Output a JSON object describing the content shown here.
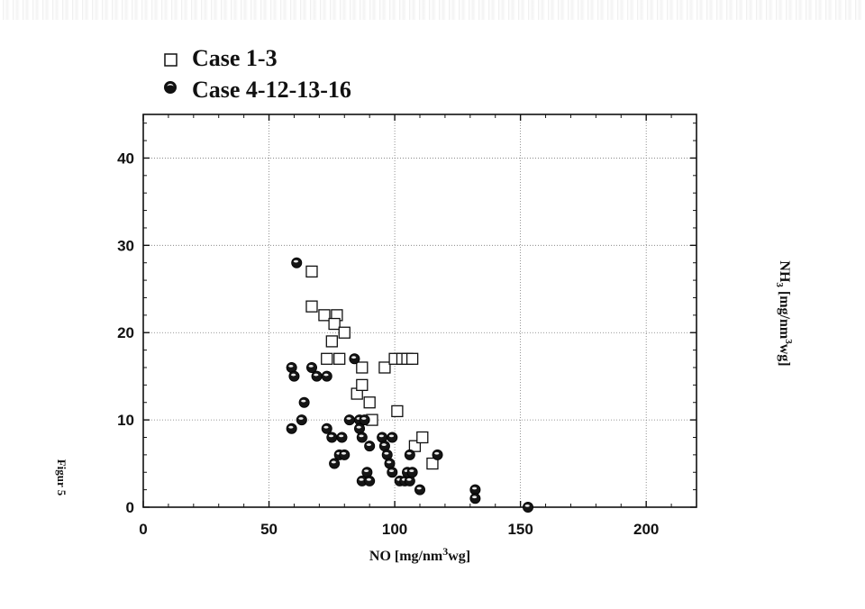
{
  "chart_data": {
    "type": "scatter",
    "xlabel_text": "NO [mg/nm",
    "xlabel_sup": "3",
    "xlabel_tail": "wg]",
    "ylabel_head": "NH",
    "ylabel_sub": "3",
    "ylabel_text": " [mg/nm",
    "ylabel_sup": "3",
    "ylabel_tail": "wg]",
    "xlim": [
      0,
      220
    ],
    "ylim": [
      0,
      45
    ],
    "xticks": [
      0,
      50,
      100,
      150,
      200
    ],
    "yticks": [
      0,
      10,
      20,
      30,
      40
    ],
    "grid": true,
    "legend_position": "top-left",
    "series": [
      {
        "name": "Case 1-3",
        "marker": "open-square",
        "points": [
          [
            67,
            27
          ],
          [
            67,
            23
          ],
          [
            72,
            22
          ],
          [
            77,
            22
          ],
          [
            76,
            21
          ],
          [
            80,
            20
          ],
          [
            75,
            19
          ],
          [
            73,
            17
          ],
          [
            78,
            17
          ],
          [
            87,
            16
          ],
          [
            85,
            13
          ],
          [
            87,
            14
          ],
          [
            90,
            12
          ],
          [
            91,
            10
          ],
          [
            96,
            16
          ],
          [
            100,
            17
          ],
          [
            103,
            17
          ],
          [
            105,
            17
          ],
          [
            107,
            17
          ],
          [
            101,
            11
          ],
          [
            108,
            7
          ],
          [
            111,
            8
          ],
          [
            115,
            5
          ]
        ]
      },
      {
        "name": "Case 4-12-13-16",
        "marker": "filled-circle",
        "points": [
          [
            61,
            28
          ],
          [
            59,
            16
          ],
          [
            60,
            15
          ],
          [
            67,
            16
          ],
          [
            69,
            15
          ],
          [
            73,
            15
          ],
          [
            84,
            17
          ],
          [
            64,
            12
          ],
          [
            63,
            10
          ],
          [
            59,
            9
          ],
          [
            73,
            9
          ],
          [
            75,
            8
          ],
          [
            79,
            8
          ],
          [
            82,
            10
          ],
          [
            86,
            10
          ],
          [
            88,
            10
          ],
          [
            86,
            9
          ],
          [
            87,
            8
          ],
          [
            78,
            6
          ],
          [
            80,
            6
          ],
          [
            76,
            5
          ],
          [
            90,
            7
          ],
          [
            95,
            8
          ],
          [
            99,
            8
          ],
          [
            96,
            7
          ],
          [
            97,
            6
          ],
          [
            98,
            5
          ],
          [
            87,
            3
          ],
          [
            89,
            4
          ],
          [
            90,
            3
          ],
          [
            99,
            4
          ],
          [
            102,
            3
          ],
          [
            104,
            3
          ],
          [
            106,
            3
          ],
          [
            105,
            4
          ],
          [
            107,
            4
          ],
          [
            106,
            6
          ],
          [
            117,
            6
          ],
          [
            110,
            2
          ],
          [
            132,
            2
          ],
          [
            132,
            1
          ],
          [
            153,
            0
          ]
        ]
      }
    ],
    "side_caption": "Figur  5"
  }
}
